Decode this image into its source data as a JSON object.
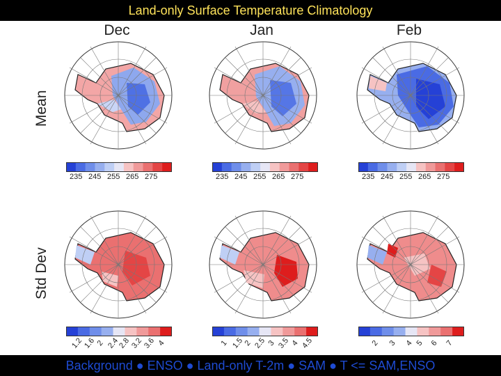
{
  "title": "Land-only Surface Temperature Climatology",
  "footer": "Background ● ENSO ● Land-only T-2m ● SAM ● T <= SAM,ENSO",
  "columns": [
    "Dec",
    "Jan",
    "Feb"
  ],
  "rows": [
    "Mean",
    "Std Dev"
  ],
  "colors": {
    "blues": [
      "#2541d6",
      "#4a6be4",
      "#6f8eea",
      "#97afef",
      "#bfcff5"
    ],
    "neutral": "#e6e6f5",
    "reds": [
      "#f6c3c3",
      "#f09a9a",
      "#ea7070",
      "#e44545",
      "#de1d1d"
    ]
  },
  "colorbars": {
    "mean": [
      "235",
      "245",
      "255",
      "265",
      "275"
    ],
    "std_dec": [
      "1.2",
      "1.6",
      "2",
      "2.4",
      "2.8",
      "3.2",
      "3.6",
      "4"
    ],
    "std_jan": [
      "1",
      "1.5",
      "2",
      "2.5",
      "3",
      "3.5",
      "4",
      "4.5"
    ],
    "std_feb": [
      "2",
      "3",
      "4",
      "5",
      "6",
      "7"
    ]
  }
}
